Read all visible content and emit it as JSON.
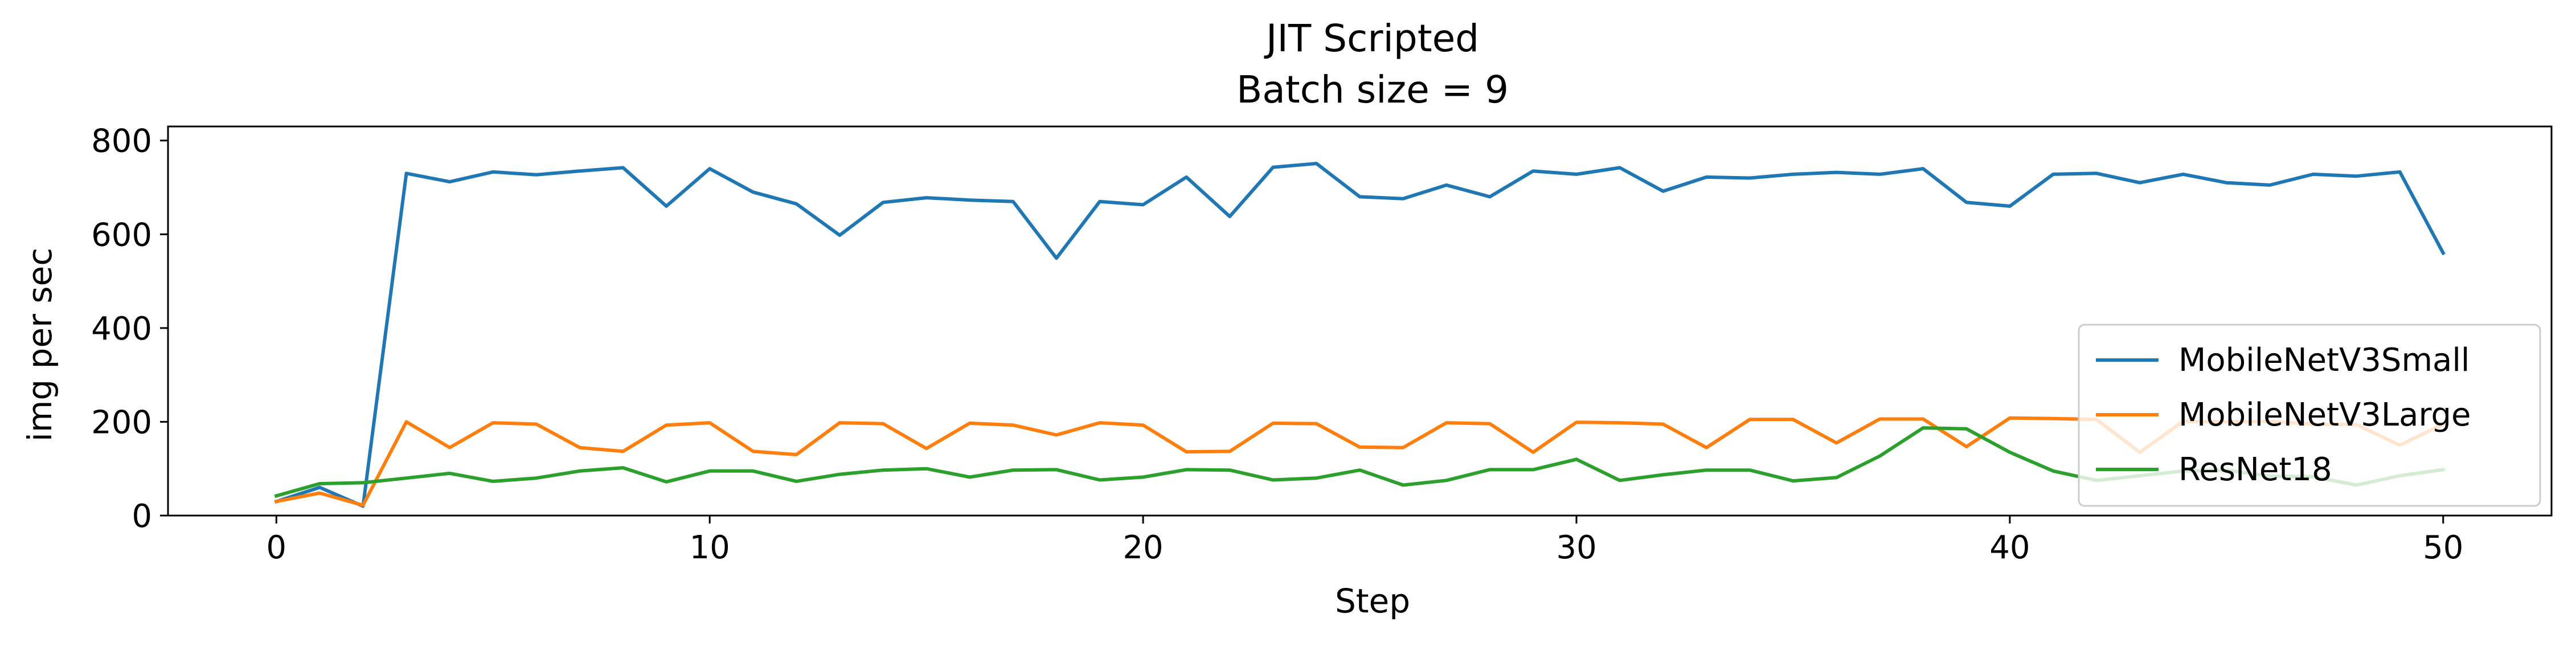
{
  "chart_data": {
    "type": "line",
    "title": "JIT Scripted",
    "subtitle": "Batch size = 9",
    "xlabel": "Step",
    "ylabel": "img per sec",
    "xlim": [
      -2.5,
      52.5
    ],
    "ylim": [
      0,
      830
    ],
    "xticks": [
      0,
      10,
      20,
      30,
      40,
      50
    ],
    "yticks": [
      0,
      200,
      400,
      600,
      800
    ],
    "grid": false,
    "legend_position": "lower right",
    "x": [
      0,
      1,
      2,
      3,
      4,
      5,
      6,
      7,
      8,
      9,
      10,
      11,
      12,
      13,
      14,
      15,
      16,
      17,
      18,
      19,
      20,
      21,
      22,
      23,
      24,
      25,
      26,
      27,
      28,
      29,
      30,
      31,
      32,
      33,
      34,
      35,
      36,
      37,
      38,
      39,
      40,
      41,
      42,
      43,
      44,
      45,
      46,
      47,
      48,
      49,
      50
    ],
    "series": [
      {
        "name": "MobileNetV3Small",
        "color": "#1f77b4",
        "values": [
          30,
          60,
          20,
          730,
          712,
          733,
          727,
          735,
          742,
          660,
          740,
          690,
          665,
          598,
          668,
          678,
          673,
          670,
          549,
          670,
          663,
          722,
          638,
          743,
          751,
          680,
          676,
          705,
          680,
          735,
          728,
          742,
          692,
          722,
          720,
          728,
          732,
          728,
          740,
          668,
          660,
          728,
          730,
          710,
          728,
          710,
          705,
          728,
          724,
          733,
          560
        ]
      },
      {
        "name": "MobileNetV3Large",
        "color": "#ff7f0e",
        "values": [
          30,
          48,
          22,
          200,
          145,
          198,
          195,
          145,
          137,
          193,
          198,
          137,
          130,
          198,
          196,
          143,
          197,
          193,
          172,
          198,
          193,
          136,
          137,
          197,
          196,
          146,
          145,
          198,
          196,
          135,
          199,
          198,
          195,
          145,
          205,
          205,
          155,
          206,
          206,
          147,
          208,
          207,
          205,
          135,
          201,
          200,
          201,
          195,
          194,
          150,
          195
        ]
      },
      {
        "name": "ResNet18",
        "color": "#2ca02c",
        "values": [
          42,
          68,
          70,
          80,
          90,
          73,
          80,
          95,
          102,
          72,
          95,
          95,
          73,
          88,
          97,
          100,
          82,
          97,
          98,
          76,
          82,
          98,
          97,
          76,
          80,
          97,
          65,
          75,
          98,
          98,
          120,
          75,
          87,
          97,
          97,
          74,
          81,
          127,
          187,
          185,
          135,
          95,
          75,
          85,
          95,
          97,
          84,
          83,
          65,
          85,
          98
        ]
      }
    ]
  }
}
